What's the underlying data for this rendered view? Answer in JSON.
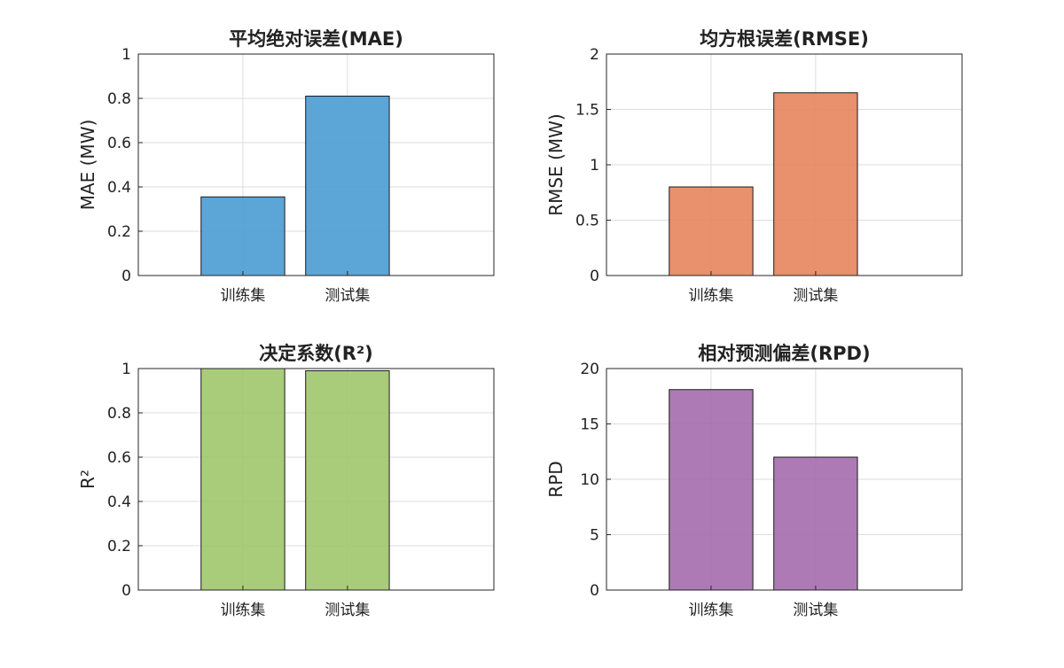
{
  "chart_data": [
    {
      "type": "bar",
      "title": "平均绝对误差(MAE)",
      "ylabel": "MAE (MW)",
      "categories": [
        "训练集",
        "测试集"
      ],
      "values": [
        0.355,
        0.81
      ],
      "ylim": [
        0,
        1
      ],
      "yticks": [
        "0",
        "0.2",
        "0.4",
        "0.6",
        "0.8",
        "1"
      ],
      "color": "#4a9bd3",
      "grid": true
    },
    {
      "type": "bar",
      "title": "均方根误差(RMSE)",
      "ylabel": "RMSE (MW)",
      "categories": [
        "训练集",
        "测试集"
      ],
      "values": [
        0.8,
        1.65
      ],
      "ylim": [
        0,
        2
      ],
      "yticks": [
        "0",
        "0.5",
        "1",
        "1.5",
        "2"
      ],
      "color": "#e6855c",
      "grid": true
    },
    {
      "type": "bar",
      "title": "决定系数(R²)",
      "ylabel": "R²",
      "categories": [
        "训练集",
        "测试集"
      ],
      "values": [
        1.0,
        0.99
      ],
      "ylim": [
        0,
        1
      ],
      "yticks": [
        "0",
        "0.2",
        "0.4",
        "0.6",
        "0.8",
        "1"
      ],
      "color": "#a0c66c",
      "grid": true
    },
    {
      "type": "bar",
      "title": "相对预测偏差(RPD)",
      "ylabel": "RPD",
      "categories": [
        "训练集",
        "测试集"
      ],
      "values": [
        18.1,
        12.0
      ],
      "ylim": [
        0,
        20
      ],
      "yticks": [
        "0",
        "5",
        "10",
        "15",
        "20"
      ],
      "color": "#a46cae",
      "grid": true
    }
  ]
}
